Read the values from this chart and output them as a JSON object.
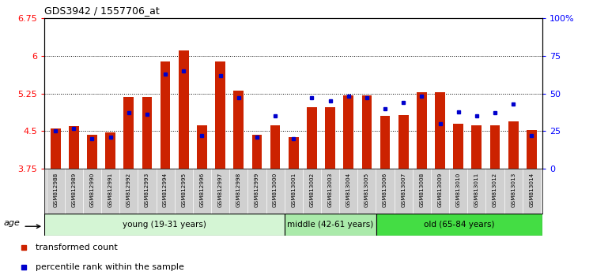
{
  "title": "GDS3942 / 1557706_at",
  "samples": [
    "GSM812988",
    "GSM812989",
    "GSM812990",
    "GSM812991",
    "GSM812992",
    "GSM812993",
    "GSM812994",
    "GSM812995",
    "GSM812996",
    "GSM812997",
    "GSM812998",
    "GSM812999",
    "GSM813000",
    "GSM813001",
    "GSM813002",
    "GSM813003",
    "GSM813004",
    "GSM813005",
    "GSM813006",
    "GSM813007",
    "GSM813008",
    "GSM813009",
    "GSM813010",
    "GSM813011",
    "GSM813012",
    "GSM813013",
    "GSM813014"
  ],
  "red_values": [
    4.55,
    4.6,
    4.43,
    4.48,
    5.18,
    5.18,
    5.88,
    6.1,
    4.62,
    5.88,
    5.3,
    4.42,
    4.62,
    4.38,
    4.98,
    4.98,
    5.22,
    5.22,
    4.8,
    4.82,
    5.28,
    5.28,
    4.65,
    4.62,
    4.62,
    4.7,
    4.52
  ],
  "blue_values": [
    25,
    27,
    20,
    21,
    37,
    36,
    63,
    65,
    22,
    62,
    47,
    21,
    35,
    20,
    47,
    45,
    48,
    47,
    40,
    44,
    48,
    30,
    38,
    35,
    37,
    43,
    22
  ],
  "groups": [
    {
      "label": "young (19-31 years)",
      "start": 0,
      "end": 13,
      "color": "#d4f5d4"
    },
    {
      "label": "middle (42-61 years)",
      "start": 13,
      "end": 18,
      "color": "#aaeaaa"
    },
    {
      "label": "old (65-84 years)",
      "start": 18,
      "end": 27,
      "color": "#44dd44"
    }
  ],
  "ylim_left": [
    3.75,
    6.75
  ],
  "ylim_right": [
    0,
    100
  ],
  "yticks_left": [
    3.75,
    4.5,
    5.25,
    6.0,
    6.75
  ],
  "yticks_right": [
    0,
    25,
    50,
    75,
    100
  ],
  "ytick_labels_left": [
    "3.75",
    "4.5",
    "5.25",
    "6",
    "6.75"
  ],
  "ytick_labels_right": [
    "0",
    "25",
    "50",
    "75",
    "100%"
  ],
  "grid_yticks": [
    4.5,
    5.25,
    6.0
  ],
  "bar_color": "#cc2200",
  "dot_color": "#0000cc",
  "bar_width": 0.55,
  "age_label": "age",
  "legend_red": "transformed count",
  "legend_blue": "percentile rank within the sample",
  "xtick_bg": "#d0d0d0",
  "plot_bg": "#ffffff"
}
